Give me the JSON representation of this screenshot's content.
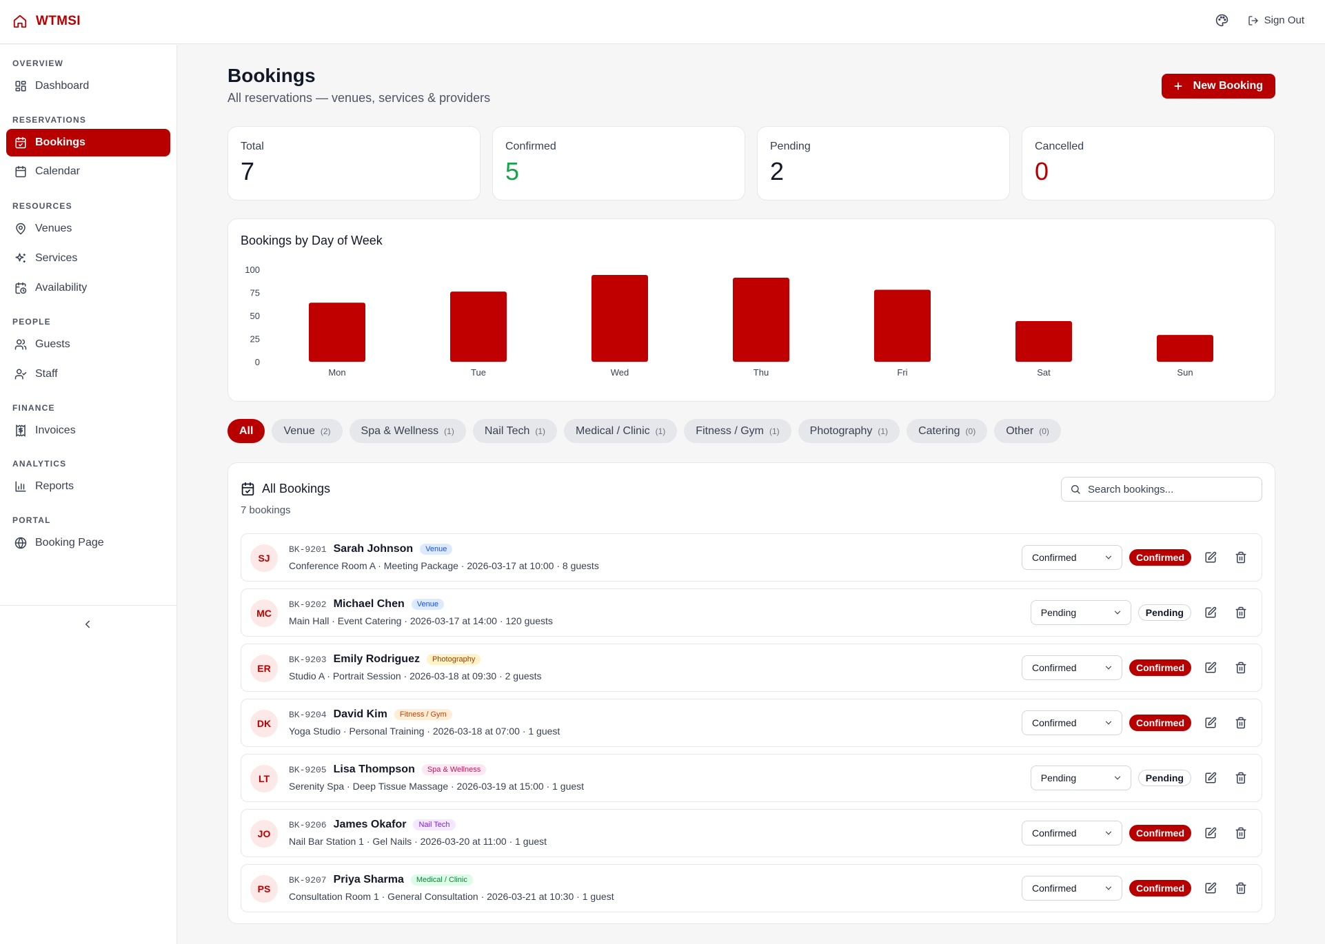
{
  "app": {
    "brand": "WTMSI",
    "sign_out": "Sign Out"
  },
  "sidebar": {
    "sections": [
      {
        "title": "OVERVIEW",
        "items": [
          {
            "label": "Dashboard",
            "icon": "dashboard-icon"
          }
        ]
      },
      {
        "title": "RESERVATIONS",
        "items": [
          {
            "label": "Bookings",
            "icon": "calendar-check-icon",
            "active": true
          },
          {
            "label": "Calendar",
            "icon": "calendar-icon"
          }
        ]
      },
      {
        "title": "RESOURCES",
        "items": [
          {
            "label": "Venues",
            "icon": "map-pin-icon"
          },
          {
            "label": "Services",
            "icon": "sparkles-icon"
          },
          {
            "label": "Availability",
            "icon": "calendar-clock-icon"
          }
        ]
      },
      {
        "title": "PEOPLE",
        "items": [
          {
            "label": "Guests",
            "icon": "users-icon"
          },
          {
            "label": "Staff",
            "icon": "user-check-icon"
          }
        ]
      },
      {
        "title": "FINANCE",
        "items": [
          {
            "label": "Invoices",
            "icon": "receipt-icon"
          }
        ]
      },
      {
        "title": "ANALYTICS",
        "items": [
          {
            "label": "Reports",
            "icon": "bar-chart-icon"
          }
        ]
      },
      {
        "title": "PORTAL",
        "items": [
          {
            "label": "Booking Page",
            "icon": "globe-icon"
          }
        ]
      }
    ]
  },
  "header": {
    "title": "Bookings",
    "subtitle": "All reservations — venues, services & providers",
    "new_button": "New Booking"
  },
  "stats": [
    {
      "label": "Total",
      "value": "7",
      "tone": "default"
    },
    {
      "label": "Confirmed",
      "value": "5",
      "tone": "green"
    },
    {
      "label": "Pending",
      "value": "2",
      "tone": "default"
    },
    {
      "label": "Cancelled",
      "value": "0",
      "tone": "red"
    }
  ],
  "chart_data": {
    "type": "bar",
    "title": "Bookings by Day of Week",
    "categories": [
      "Mon",
      "Tue",
      "Wed",
      "Thu",
      "Fri",
      "Sat",
      "Sun"
    ],
    "values": [
      64,
      76,
      94,
      91,
      78,
      44,
      29
    ],
    "ylim": [
      0,
      100
    ],
    "yticks": [
      0,
      25,
      50,
      75,
      100
    ],
    "xlabel": "",
    "ylabel": "",
    "color": "#c00000",
    "grid": false
  },
  "filters": [
    {
      "label": "All",
      "count": "",
      "active": true
    },
    {
      "label": "Venue",
      "count": "(2)"
    },
    {
      "label": "Spa & Wellness",
      "count": "(1)"
    },
    {
      "label": "Nail Tech",
      "count": "(1)"
    },
    {
      "label": "Medical / Clinic",
      "count": "(1)"
    },
    {
      "label": "Fitness / Gym",
      "count": "(1)"
    },
    {
      "label": "Photography",
      "count": "(1)"
    },
    {
      "label": "Catering",
      "count": "(0)"
    },
    {
      "label": "Other",
      "count": "(0)"
    }
  ],
  "list": {
    "title": "All Bookings",
    "count_text": "7 bookings",
    "search_placeholder": "Search bookings...",
    "rows": [
      {
        "initials": "SJ",
        "id": "BK-9201",
        "name": "Sarah Johnson",
        "category": "Venue",
        "cat_bg": "#dbeafe",
        "cat_fg": "#1d4ed8",
        "details": "Conference Room A · Meeting Package · 2026-03-17 at 10:00 · 8 guests",
        "select": "Confirmed",
        "status": "Confirmed"
      },
      {
        "initials": "MC",
        "id": "BK-9202",
        "name": "Michael Chen",
        "category": "Venue",
        "cat_bg": "#dbeafe",
        "cat_fg": "#1d4ed8",
        "details": "Main Hall · Event Catering · 2026-03-17 at 14:00 · 120 guests",
        "select": "Pending",
        "status": "Pending"
      },
      {
        "initials": "ER",
        "id": "BK-9203",
        "name": "Emily Rodriguez",
        "category": "Photography",
        "cat_bg": "#fef3c7",
        "cat_fg": "#92400e",
        "details": "Studio A · Portrait Session · 2026-03-18 at 09:30 · 2 guests",
        "select": "Confirmed",
        "status": "Confirmed"
      },
      {
        "initials": "DK",
        "id": "BK-9204",
        "name": "David Kim",
        "category": "Fitness / Gym",
        "cat_bg": "#ffedd5",
        "cat_fg": "#c2410c",
        "details": "Yoga Studio · Personal Training · 2026-03-18 at 07:00 · 1 guest",
        "select": "Confirmed",
        "status": "Confirmed"
      },
      {
        "initials": "LT",
        "id": "BK-9205",
        "name": "Lisa Thompson",
        "category": "Spa & Wellness",
        "cat_bg": "#fce7f3",
        "cat_fg": "#be185d",
        "details": "Serenity Spa · Deep Tissue Massage · 2026-03-19 at 15:00 · 1 guest",
        "select": "Pending",
        "status": "Pending"
      },
      {
        "initials": "JO",
        "id": "BK-9206",
        "name": "James Okafor",
        "category": "Nail Tech",
        "cat_bg": "#f3e8ff",
        "cat_fg": "#7e22ce",
        "details": "Nail Bar Station 1 · Gel Nails · 2026-03-20 at 11:00 · 1 guest",
        "select": "Confirmed",
        "status": "Confirmed"
      },
      {
        "initials": "PS",
        "id": "BK-9207",
        "name": "Priya Sharma",
        "category": "Medical / Clinic",
        "cat_bg": "#dcfce7",
        "cat_fg": "#15803d",
        "details": "Consultation Room 1 · General Consultation · 2026-03-21 at 10:30 · 1 guest",
        "select": "Confirmed",
        "status": "Confirmed"
      }
    ]
  }
}
